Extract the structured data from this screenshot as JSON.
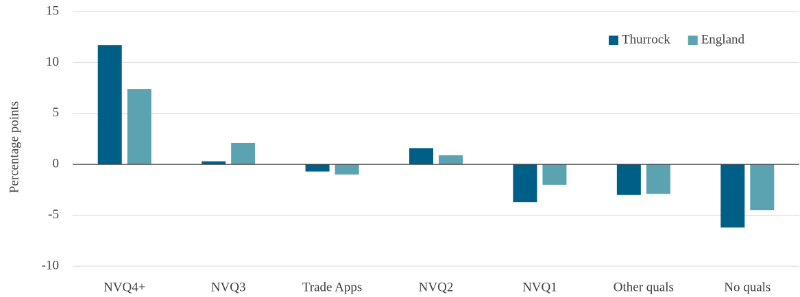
{
  "chart_data": {
    "type": "bar",
    "y_label": "Percentage points",
    "categories": [
      "NVQ4+",
      "NVQ3",
      "Trade Apps",
      "NVQ2",
      "NVQ1",
      "Other quals",
      "No quals"
    ],
    "series": [
      {
        "name": "Thurrock",
        "color": "#005f86",
        "values": [
          11.7,
          0.3,
          -0.7,
          1.6,
          -3.7,
          -3.0,
          -6.2
        ]
      },
      {
        "name": "England",
        "color": "#5ba3b0",
        "values": [
          7.4,
          2.1,
          -1.0,
          0.9,
          -2.0,
          -2.9,
          -4.5
        ]
      }
    ],
    "ylim": [
      -10,
      15
    ],
    "yticks": [
      -10,
      -5,
      0,
      5,
      10,
      15
    ],
    "grid": true,
    "legend": "top-right"
  }
}
